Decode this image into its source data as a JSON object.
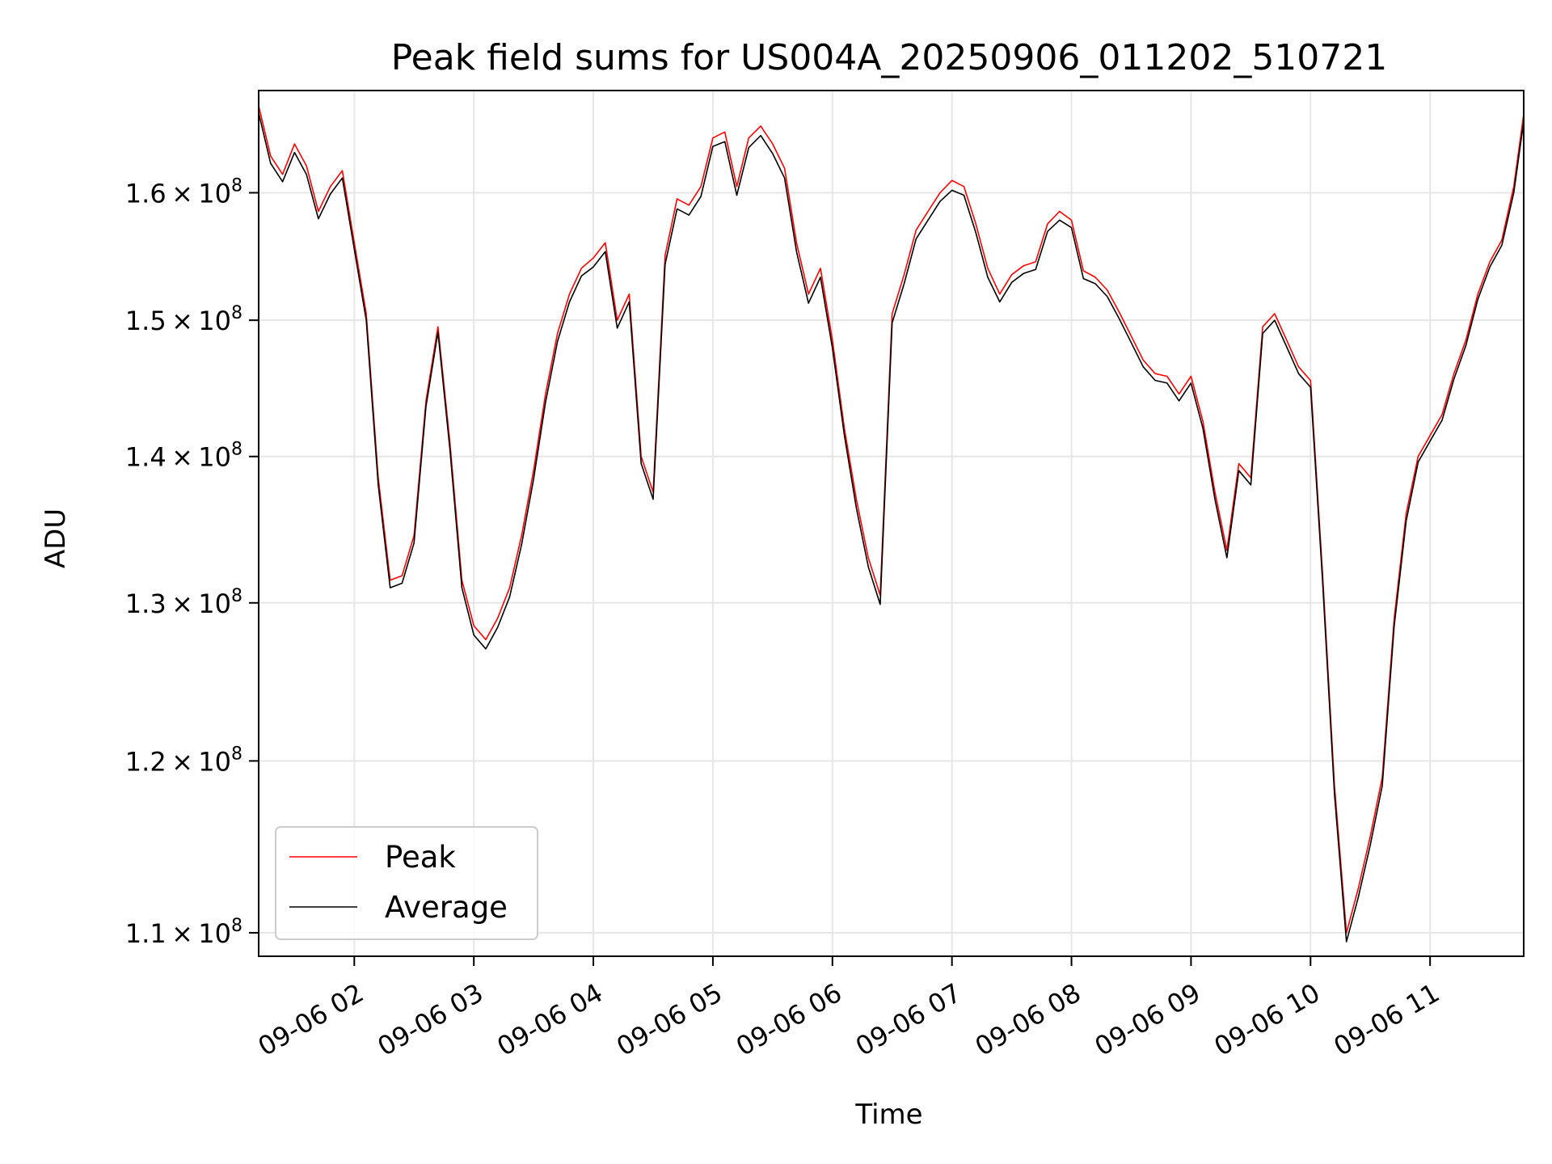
{
  "chart_data": {
    "type": "line",
    "title": "Peak field sums for US004A_20250906_011202_510721",
    "xlabel": "Time",
    "ylabel": "ADU",
    "y_scale": "log",
    "xlim": [
      "2025-09-06 01:12",
      "2025-09-06 11:47"
    ],
    "ylim": [
      108700000,
      168500000
    ],
    "grid": true,
    "legend_position": "lower-left",
    "x_ticks": [
      {
        "value": "2025-09-06 02:00",
        "label": "09-06 02"
      },
      {
        "value": "2025-09-06 03:00",
        "label": "09-06 03"
      },
      {
        "value": "2025-09-06 04:00",
        "label": "09-06 04"
      },
      {
        "value": "2025-09-06 05:00",
        "label": "09-06 05"
      },
      {
        "value": "2025-09-06 06:00",
        "label": "09-06 06"
      },
      {
        "value": "2025-09-06 07:00",
        "label": "09-06 07"
      },
      {
        "value": "2025-09-06 08:00",
        "label": "09-06 08"
      },
      {
        "value": "2025-09-06 09:00",
        "label": "09-06 09"
      },
      {
        "value": "2025-09-06 10:00",
        "label": "09-06 10"
      },
      {
        "value": "2025-09-06 11:00",
        "label": "09-06 11"
      }
    ],
    "y_ticks": [
      {
        "value": 110000000,
        "mantissa": "1.1",
        "base": "10",
        "exponent": "8"
      },
      {
        "value": 120000000,
        "mantissa": "1.2",
        "base": "10",
        "exponent": "8"
      },
      {
        "value": 130000000,
        "mantissa": "1.3",
        "base": "10",
        "exponent": "8"
      },
      {
        "value": 140000000,
        "mantissa": "1.4",
        "base": "10",
        "exponent": "8"
      },
      {
        "value": 150000000,
        "mantissa": "1.5",
        "base": "10",
        "exponent": "8"
      },
      {
        "value": 160000000,
        "mantissa": "1.6",
        "base": "10",
        "exponent": "8"
      }
    ],
    "series": [
      {
        "name": "Peak",
        "color": "#ff0000",
        "x": [
          "2025-09-06 01:12",
          "2025-09-06 01:18",
          "2025-09-06 01:24",
          "2025-09-06 01:30",
          "2025-09-06 01:36",
          "2025-09-06 01:42",
          "2025-09-06 01:48",
          "2025-09-06 01:54",
          "2025-09-06 02:00",
          "2025-09-06 02:06",
          "2025-09-06 02:12",
          "2025-09-06 02:18",
          "2025-09-06 02:24",
          "2025-09-06 02:30",
          "2025-09-06 02:36",
          "2025-09-06 02:42",
          "2025-09-06 02:48",
          "2025-09-06 02:54",
          "2025-09-06 03:00",
          "2025-09-06 03:06",
          "2025-09-06 03:12",
          "2025-09-06 03:18",
          "2025-09-06 03:24",
          "2025-09-06 03:30",
          "2025-09-06 03:36",
          "2025-09-06 03:42",
          "2025-09-06 03:48",
          "2025-09-06 03:54",
          "2025-09-06 04:00",
          "2025-09-06 04:06",
          "2025-09-06 04:12",
          "2025-09-06 04:18",
          "2025-09-06 04:24",
          "2025-09-06 04:30",
          "2025-09-06 04:36",
          "2025-09-06 04:42",
          "2025-09-06 04:48",
          "2025-09-06 04:54",
          "2025-09-06 05:00",
          "2025-09-06 05:06",
          "2025-09-06 05:12",
          "2025-09-06 05:18",
          "2025-09-06 05:24",
          "2025-09-06 05:30",
          "2025-09-06 05:36",
          "2025-09-06 05:42",
          "2025-09-06 05:48",
          "2025-09-06 05:54",
          "2025-09-06 06:00",
          "2025-09-06 06:06",
          "2025-09-06 06:12",
          "2025-09-06 06:18",
          "2025-09-06 06:24",
          "2025-09-06 06:30",
          "2025-09-06 06:36",
          "2025-09-06 06:42",
          "2025-09-06 06:48",
          "2025-09-06 06:54",
          "2025-09-06 07:00",
          "2025-09-06 07:06",
          "2025-09-06 07:12",
          "2025-09-06 07:18",
          "2025-09-06 07:24",
          "2025-09-06 07:30",
          "2025-09-06 07:36",
          "2025-09-06 07:42",
          "2025-09-06 07:48",
          "2025-09-06 07:54",
          "2025-09-06 08:00",
          "2025-09-06 08:06",
          "2025-09-06 08:12",
          "2025-09-06 08:18",
          "2025-09-06 08:24",
          "2025-09-06 08:30",
          "2025-09-06 08:36",
          "2025-09-06 08:42",
          "2025-09-06 08:48",
          "2025-09-06 08:54",
          "2025-09-06 09:00",
          "2025-09-06 09:06",
          "2025-09-06 09:12",
          "2025-09-06 09:18",
          "2025-09-06 09:24",
          "2025-09-06 09:30",
          "2025-09-06 09:36",
          "2025-09-06 09:42",
          "2025-09-06 09:48",
          "2025-09-06 09:54",
          "2025-09-06 10:00",
          "2025-09-06 10:06",
          "2025-09-06 10:12",
          "2025-09-06 10:18",
          "2025-09-06 10:24",
          "2025-09-06 10:30",
          "2025-09-06 10:36",
          "2025-09-06 10:42",
          "2025-09-06 10:48",
          "2025-09-06 10:54",
          "2025-09-06 11:00",
          "2025-09-06 11:06",
          "2025-09-06 11:12",
          "2025-09-06 11:18",
          "2025-09-06 11:24",
          "2025-09-06 11:30",
          "2025-09-06 11:36",
          "2025-09-06 11:42",
          "2025-09-06 11:47"
        ],
        "values": [
          167200000,
          163000000,
          161500000,
          164000000,
          162200000,
          158500000,
          160500000,
          161800000,
          156000000,
          150500000,
          138500000,
          131500000,
          131800000,
          134500000,
          144000000,
          149500000,
          141000000,
          131500000,
          128500000,
          127600000,
          129000000,
          131000000,
          134500000,
          139000000,
          144500000,
          149000000,
          152000000,
          154000000,
          154800000,
          156000000,
          150000000,
          152000000,
          140000000,
          137500000,
          155000000,
          159500000,
          159000000,
          160500000,
          164500000,
          165000000,
          160500000,
          164500000,
          165500000,
          164000000,
          162000000,
          156000000,
          152000000,
          154000000,
          148500000,
          142000000,
          137000000,
          133000000,
          130500000,
          150500000,
          153500000,
          157000000,
          158500000,
          160000000,
          161000000,
          160500000,
          157500000,
          154000000,
          152000000,
          153500000,
          154200000,
          154500000,
          157500000,
          158500000,
          157800000,
          153800000,
          153300000,
          152300000,
          150600000,
          148800000,
          147000000,
          146000000,
          145800000,
          144500000,
          145800000,
          142500000,
          137500000,
          133500000,
          139500000,
          138500000,
          149500000,
          150500000,
          148500000,
          146500000,
          145500000,
          132000000,
          118500000,
          110000000,
          112500000,
          115500000,
          119000000,
          129000000,
          136000000,
          140000000,
          141500000,
          143000000,
          146000000,
          148500000,
          152000000,
          154500000,
          156200000,
          160500000,
          166500000
        ]
      },
      {
        "name": "Average",
        "color": "#000000",
        "x": [
          "2025-09-06 01:12",
          "2025-09-06 01:18",
          "2025-09-06 01:24",
          "2025-09-06 01:30",
          "2025-09-06 01:36",
          "2025-09-06 01:42",
          "2025-09-06 01:48",
          "2025-09-06 01:54",
          "2025-09-06 02:00",
          "2025-09-06 02:06",
          "2025-09-06 02:12",
          "2025-09-06 02:18",
          "2025-09-06 02:24",
          "2025-09-06 02:30",
          "2025-09-06 02:36",
          "2025-09-06 02:42",
          "2025-09-06 02:48",
          "2025-09-06 02:54",
          "2025-09-06 03:00",
          "2025-09-06 03:06",
          "2025-09-06 03:12",
          "2025-09-06 03:18",
          "2025-09-06 03:24",
          "2025-09-06 03:30",
          "2025-09-06 03:36",
          "2025-09-06 03:42",
          "2025-09-06 03:48",
          "2025-09-06 03:54",
          "2025-09-06 04:00",
          "2025-09-06 04:06",
          "2025-09-06 04:12",
          "2025-09-06 04:18",
          "2025-09-06 04:24",
          "2025-09-06 04:30",
          "2025-09-06 04:36",
          "2025-09-06 04:42",
          "2025-09-06 04:48",
          "2025-09-06 04:54",
          "2025-09-06 05:00",
          "2025-09-06 05:06",
          "2025-09-06 05:12",
          "2025-09-06 05:18",
          "2025-09-06 05:24",
          "2025-09-06 05:30",
          "2025-09-06 05:36",
          "2025-09-06 05:42",
          "2025-09-06 05:48",
          "2025-09-06 05:54",
          "2025-09-06 06:00",
          "2025-09-06 06:06",
          "2025-09-06 06:12",
          "2025-09-06 06:18",
          "2025-09-06 06:24",
          "2025-09-06 06:30",
          "2025-09-06 06:36",
          "2025-09-06 06:42",
          "2025-09-06 06:48",
          "2025-09-06 06:54",
          "2025-09-06 07:00",
          "2025-09-06 07:06",
          "2025-09-06 07:12",
          "2025-09-06 07:18",
          "2025-09-06 07:24",
          "2025-09-06 07:30",
          "2025-09-06 07:36",
          "2025-09-06 07:42",
          "2025-09-06 07:48",
          "2025-09-06 07:54",
          "2025-09-06 08:00",
          "2025-09-06 08:06",
          "2025-09-06 08:12",
          "2025-09-06 08:18",
          "2025-09-06 08:24",
          "2025-09-06 08:30",
          "2025-09-06 08:36",
          "2025-09-06 08:42",
          "2025-09-06 08:48",
          "2025-09-06 08:54",
          "2025-09-06 09:00",
          "2025-09-06 09:06",
          "2025-09-06 09:12",
          "2025-09-06 09:18",
          "2025-09-06 09:24",
          "2025-09-06 09:30",
          "2025-09-06 09:36",
          "2025-09-06 09:42",
          "2025-09-06 09:48",
          "2025-09-06 09:54",
          "2025-09-06 10:00",
          "2025-09-06 10:06",
          "2025-09-06 10:12",
          "2025-09-06 10:18",
          "2025-09-06 10:24",
          "2025-09-06 10:30",
          "2025-09-06 10:36",
          "2025-09-06 10:42",
          "2025-09-06 10:48",
          "2025-09-06 10:54",
          "2025-09-06 11:00",
          "2025-09-06 11:06",
          "2025-09-06 11:12",
          "2025-09-06 11:18",
          "2025-09-06 11:24",
          "2025-09-06 11:30",
          "2025-09-06 11:36",
          "2025-09-06 11:42",
          "2025-09-06 11:47"
        ],
        "values": [
          166600000,
          162400000,
          160900000,
          163300000,
          161500000,
          157900000,
          159900000,
          161200000,
          155500000,
          150000000,
          138000000,
          131000000,
          131300000,
          134000000,
          143600000,
          149100000,
          140500000,
          131000000,
          127900000,
          127000000,
          128400000,
          130400000,
          133900000,
          138400000,
          143900000,
          148400000,
          151400000,
          153400000,
          154100000,
          155300000,
          149400000,
          151400000,
          139500000,
          137000000,
          154300000,
          158700000,
          158200000,
          159700000,
          163800000,
          164200000,
          159800000,
          163700000,
          164700000,
          163200000,
          161200000,
          155300000,
          151300000,
          153300000,
          147900000,
          141500000,
          136400000,
          132400000,
          129900000,
          149800000,
          152800000,
          156300000,
          157800000,
          159300000,
          160200000,
          159800000,
          156800000,
          153300000,
          151400000,
          152900000,
          153600000,
          153900000,
          156900000,
          157800000,
          157200000,
          153200000,
          152800000,
          151800000,
          150100000,
          148300000,
          146500000,
          145500000,
          145300000,
          144000000,
          145300000,
          142000000,
          137000000,
          133000000,
          139000000,
          138000000,
          149000000,
          150000000,
          148000000,
          146000000,
          145000000,
          131500000,
          118000000,
          109500000,
          112000000,
          115000000,
          118500000,
          128500000,
          135500000,
          139600000,
          141100000,
          142600000,
          145600000,
          148100000,
          151600000,
          154100000,
          155800000,
          160000000,
          165900000
        ]
      }
    ]
  }
}
